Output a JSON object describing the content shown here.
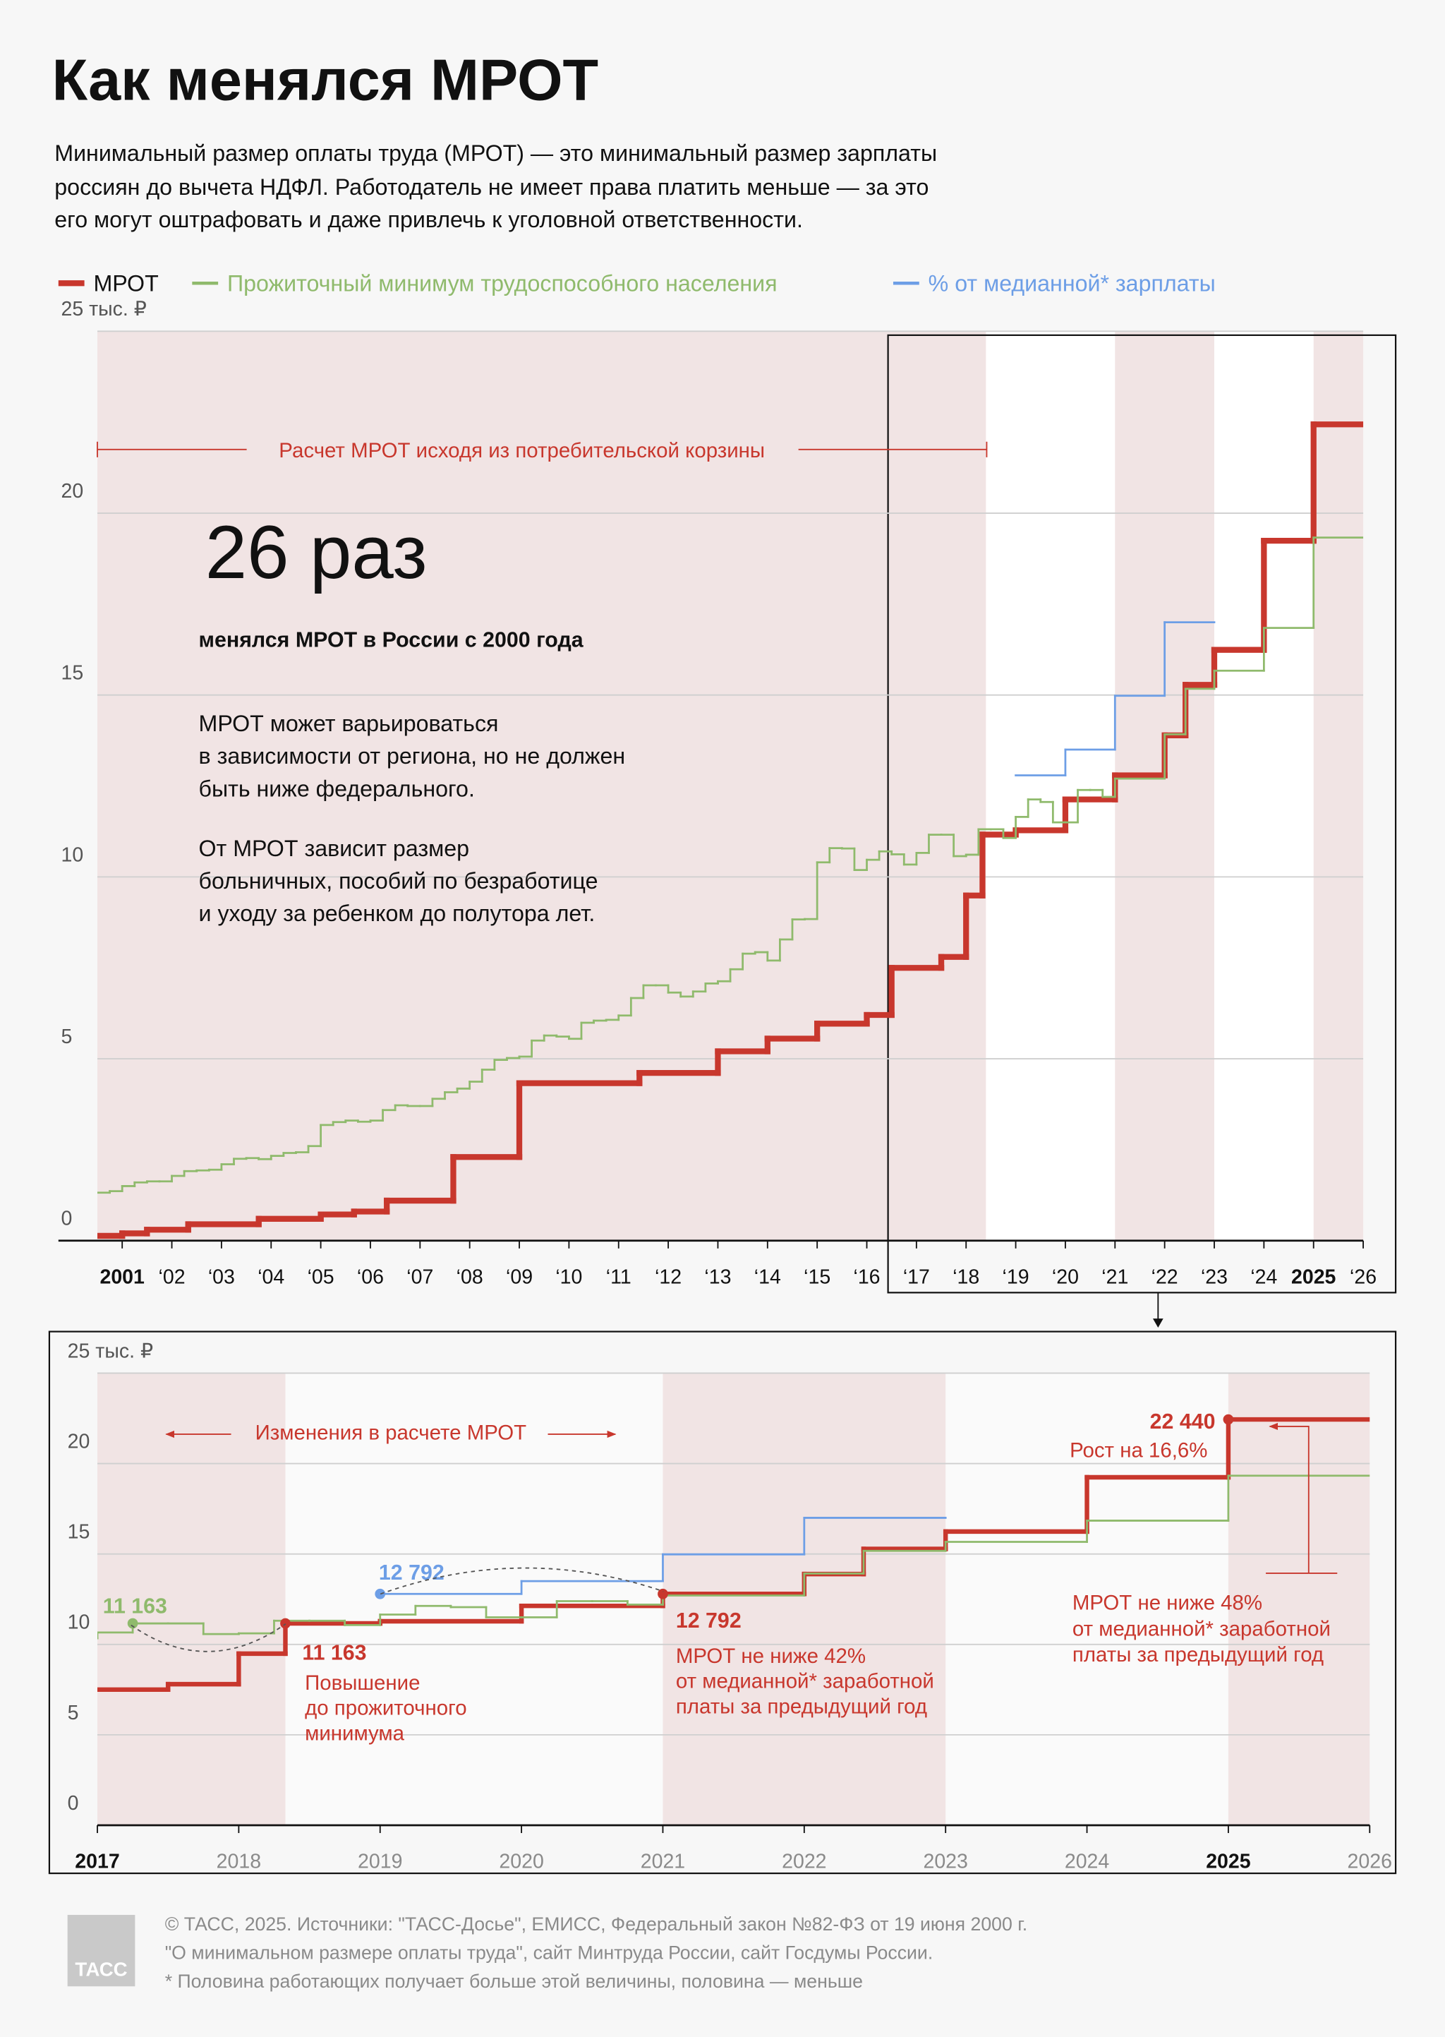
{
  "title": "Как менялся МРОТ",
  "description": [
    "Минимальный размер оплаты труда (МРОТ) — это минимальный размер зарплаты",
    "россиян до вычета НДФЛ. Работодатель не имеет права платить меньше — за это",
    "его могут оштрафовать и даже привлечь к уголовной ответственности."
  ],
  "chart_data": [
    {
      "type": "step",
      "xlim": [
        2000.5,
        2026
      ],
      "ylim": [
        0,
        25
      ],
      "xticks": [
        2001,
        {
          "value": 2002,
          "label": "‘02"
        },
        {
          "value": 2003,
          "label": "‘03"
        },
        {
          "value": 2004,
          "label": "‘04"
        },
        {
          "value": 2005,
          "label": "‘05"
        },
        {
          "value": 2006,
          "label": "‘06"
        },
        {
          "value": 2007,
          "label": "‘07"
        },
        {
          "value": 2008,
          "label": "‘08"
        },
        {
          "value": 2009,
          "label": "‘09"
        },
        {
          "value": 2010,
          "label": "‘10"
        },
        {
          "value": 2011,
          "label": "‘11"
        },
        {
          "value": 2012,
          "label": "‘12"
        },
        {
          "value": 2013,
          "label": "‘13"
        },
        {
          "value": 2014,
          "label": "‘14"
        },
        {
          "value": 2015,
          "label": "‘15"
        },
        {
          "value": 2016,
          "label": "‘16"
        },
        {
          "value": 2017,
          "label": "‘17"
        },
        {
          "value": 2018,
          "label": "‘18"
        },
        {
          "value": 2019,
          "label": "‘19"
        },
        {
          "value": 2020,
          "label": "‘20"
        },
        {
          "value": 2021,
          "label": "‘21"
        },
        {
          "value": 2022,
          "label": "‘22"
        },
        {
          "value": 2023,
          "label": "‘23"
        },
        {
          "value": 2024,
          "label": "‘24"
        },
        2025,
        {
          "value": 2026,
          "label": "‘26"
        }
      ],
      "highlight_xticks": [
        2001,
        2025
      ],
      "yticks": [
        0,
        5,
        10,
        15,
        20,
        {
          "value": 25,
          "label": "25 тыс. ₽"
        }
      ],
      "grid": true,
      "bands": [
        [
          2000.5,
          2018.4
        ],
        [
          2021,
          2023
        ],
        [
          2025,
          2026
        ]
      ],
      "band_color": "#f1e4e4",
      "span_note": "Расчет МРОТ исходя из потребительской корзины",
      "big_number": "26 раз",
      "big_number_caption": "менялся МРОТ в России с 2000 года",
      "notes": [
        [
          "МРОТ может варьироваться",
          "в зависимости от региона, но не должен",
          "быть ниже федерального."
        ],
        [
          "От МРОТ зависит размер",
          "больничных, пособий по безработице",
          "и уходу за ребенком до полутора лет."
        ]
      ],
      "series": [
        {
          "name": "МРОТ",
          "color": "#c8372d",
          "x": [
            2000.5,
            2001,
            2001.5,
            2002.33,
            2003.75,
            2005,
            2005.67,
            2006.33,
            2007.67,
            2009,
            2011.42,
            2013,
            2014,
            2015,
            2016,
            2016.5,
            2017.5,
            2018,
            2018.33,
            2019,
            2020,
            2021,
            2022,
            2022.42,
            2023,
            2024,
            2025,
            2026
          ],
          "values": [
            0.132,
            0.2,
            0.3,
            0.45,
            0.6,
            0.72,
            0.8,
            1.1,
            2.3,
            4.33,
            4.611,
            5.205,
            5.554,
            5.965,
            6.204,
            7.5,
            7.8,
            9.489,
            11.163,
            11.28,
            12.13,
            12.792,
            13.89,
            15.279,
            16.242,
            19.242,
            22.44,
            22.44
          ]
        },
        {
          "name": "Прожиточный минимум трудоспособного населения",
          "color": "#8fba6c",
          "x": [
            2000.5,
            2000.75,
            2001,
            2001.25,
            2001.5,
            2001.75,
            2002,
            2002.25,
            2002.5,
            2002.75,
            2003,
            2003.25,
            2003.5,
            2003.75,
            2004,
            2004.25,
            2004.5,
            2004.75,
            2005,
            2005.25,
            2005.5,
            2005.75,
            2006,
            2006.25,
            2006.5,
            2006.75,
            2007,
            2007.25,
            2007.5,
            2007.75,
            2008,
            2008.25,
            2008.5,
            2008.75,
            2009,
            2009.25,
            2009.5,
            2009.75,
            2010,
            2010.25,
            2010.5,
            2010.75,
            2011,
            2011.25,
            2011.5,
            2011.75,
            2012,
            2012.25,
            2012.5,
            2012.75,
            2013,
            2013.25,
            2013.5,
            2013.75,
            2014,
            2014.25,
            2014.5,
            2014.75,
            2015,
            2015.25,
            2015.5,
            2015.75,
            2016,
            2016.25,
            2016.5,
            2016.75,
            2017,
            2017.25,
            2017.5,
            2017.75,
            2018,
            2018.25,
            2018.5,
            2018.75,
            2019,
            2019.25,
            2019.5,
            2019.75,
            2020,
            2020.25,
            2020.5,
            2020.75,
            2021,
            2022,
            2022.42,
            2023,
            2024,
            2025,
            2026
          ],
          "values": [
            1.32,
            1.36,
            1.5,
            1.6,
            1.63,
            1.63,
            1.78,
            1.91,
            1.93,
            1.95,
            2.1,
            2.25,
            2.27,
            2.24,
            2.33,
            2.41,
            2.43,
            2.6,
            3.18,
            3.26,
            3.3,
            3.27,
            3.3,
            3.59,
            3.72,
            3.7,
            3.7,
            3.9,
            4.08,
            4.18,
            4.37,
            4.7,
            4.97,
            5.02,
            5.06,
            5.5,
            5.64,
            5.61,
            5.55,
            5.99,
            6.05,
            6.07,
            6.19,
            6.67,
            7.02,
            7.02,
            6.82,
            6.71,
            6.85,
            7.07,
            7.13,
            7.46,
            7.89,
            7.93,
            7.7,
            8.28,
            8.83,
            8.84,
            10.4,
            10.79,
            10.78,
            10.19,
            10.47,
            10.7,
            10.62,
            10.34,
            10.66,
            11.16,
            11.16,
            10.57,
            10.61,
            11.31,
            11.31,
            11.07,
            11.65,
            12.13,
            12.06,
            11.5,
            11.5,
            12.39,
            12.39,
            12.2,
            12.702,
            13.919,
            15.172,
            15.669,
            16.844,
            19.329,
            19.329
          ]
        },
        {
          "name": "% от медианной* зарплаты",
          "color": "#6d9ee6",
          "x": [
            2019,
            2020,
            2021,
            2022,
            2023
          ],
          "values": [
            12.792,
            13.5,
            14.98,
            17.0,
            17.0
          ]
        }
      ]
    },
    {
      "type": "step",
      "xlim": [
        2017,
        2026
      ],
      "ylim": [
        0,
        25
      ],
      "xticks": [
        2017,
        2018,
        2019,
        2020,
        2021,
        2022,
        2023,
        2024,
        2025,
        2026
      ],
      "highlight_xticks": [
        2017,
        2025
      ],
      "yticks": [
        0,
        5,
        10,
        15,
        20,
        {
          "value": 25,
          "label": "25 тыс. ₽"
        }
      ],
      "grid": true,
      "bands": [
        [
          2017,
          2018.33
        ],
        [
          2021,
          2023
        ],
        [
          2025,
          2026
        ]
      ],
      "band_color": "#f1e4e4",
      "span_note": "Изменения в расчете МРОТ",
      "points": [
        {
          "x": 2017.25,
          "value": 11.163,
          "label": "11 163",
          "color": "#8fba6c"
        },
        {
          "x": 2018.33,
          "value": 11.163,
          "label": "11 163",
          "color": "#c8372d",
          "note": [
            "Повышение",
            "до прожиточного",
            "минимума"
          ]
        },
        {
          "x": 2019,
          "value": 12.792,
          "label": "12 792",
          "color": "#6d9ee6"
        },
        {
          "x": 2021,
          "value": 12.792,
          "label": "12 792",
          "color": "#c8372d",
          "note": [
            "МРОТ не ниже 42%",
            "от медианной* заработной",
            "платы за предыдущий год"
          ]
        },
        {
          "x": 2025,
          "value": 22.44,
          "label": "22 440",
          "color": "#c8372d",
          "note": [
            "Рост на 16,6%"
          ]
        }
      ],
      "side_note": [
        "МРОТ не ниже 48%",
        "от медианной* заработной",
        "платы за предыдущий год"
      ]
    }
  ],
  "footer": {
    "logo": "ТАСС",
    "lines": [
      "© ТАСС, 2025. Источники: \"ТАСС-Досье\", ЕМИСС, Федеральный закон №82-ФЗ от 19 июня 2000 г.",
      "\"О минимальном размере оплаты труда\", сайт Минтруда России, сайт Госдумы России.",
      "* Половина работающих получает больше этой величины, половина — меньше"
    ]
  }
}
